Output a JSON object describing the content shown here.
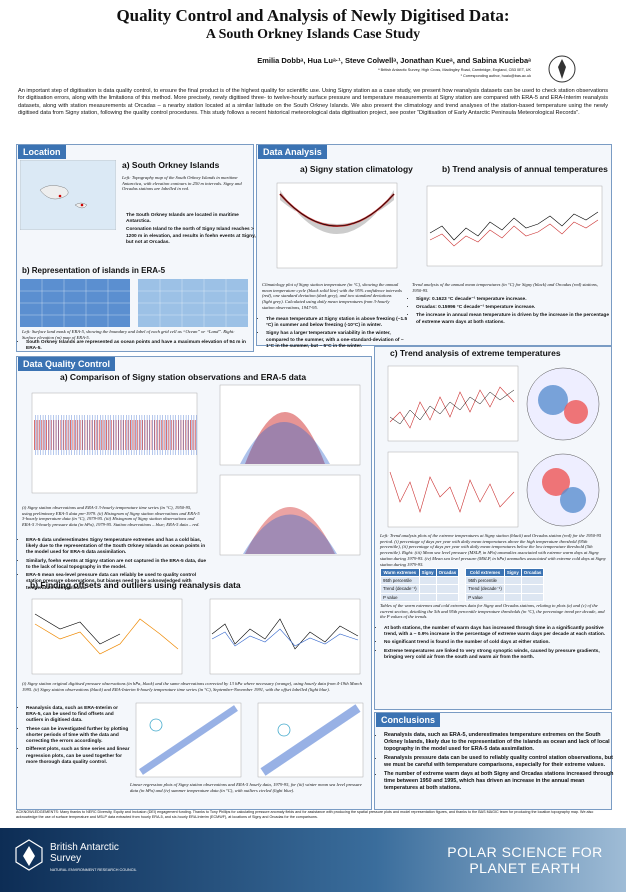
{
  "header": {
    "title": "Quality Control and Analysis of Newly Digitised Data:",
    "subtitle": "A South Orkney Islands Case Study",
    "authors": "Emilia Dobbᵃ, Hua Luᵃ·¹, Steve Colwellᵃ, Jonathan Kueᵃ, and Sabina Kuciebaᵃ",
    "affiliation": "ᵃ British Antarctic Survey, High Cross, Madingley Road, Cambridge, England, CB3 0ET, UK",
    "contact": "¹ Corresponding author, hualu@bas.ac.uk"
  },
  "abstract": "An important step of digitisation is data quality control, to ensure the final product is of the highest quality for scientific use. Using Signy station as a case study, we present how reanalysis datasets can be used to check station observations for digitisation errors, along with the limitations of this method. More precisely, newly digitised three- to twelve-hourly surface pressure and temperature measurements at Signy station are compared with ERA-5 and ERA-Interim reanalysis datasets, along with station measurements at Orcadas – a nearby station located at a similar latitude on the South Orkney Islands. We also present the climatology and trend analyses of the station-based temperature using the newly digitised data from Signy station, following the quality control procedures. This study follows a recent historical meteorological data digitisation project, see poster “Digitisation of Early Antarctic Peninsula Meteorological Records”.",
  "location": {
    "heading": "Location",
    "a_title": "a) South Orkney Islands",
    "a_caption": "Left: Topography map of the South Orkney Islands in maritime Antarctica, with elevation contours in 250 m intervals. Signy and Orcadas stations are labelled in red.",
    "a_bullets": [
      "The South Orkney Islands are located in maritime Antarctica.",
      "Coronation Island to the north of Signy Island reaches > 1200 m in elevation, and results in foehn events at Signy, but not at Orcadas."
    ],
    "b_title": "b) Representation of islands in ERA-5",
    "b_caption": "Left: Surface land mask of ERA-5, showing the boundary and label of each grid cell as “Ocean” or “Land”. Right: Surface elevation (m) map of ERA-5.",
    "b_bullets": [
      "South Orkney Islands are represented as ocean points and have a maximum elevation of 94 m in ERA-5."
    ]
  },
  "analysis": {
    "heading": "Data Analysis",
    "a_title": "a) Signy station climatology",
    "a_caption": "Climatology plot of Signy station temperature (in °C), showing the annual mean temperature cycle (black solid line) with the 95% confidence intervals (red), one standard deviation (dark grey), and two standard deviations (light grey). Calculated using daily mean temperatures from 3-hourly station observations, 1947-95.",
    "a_bullets": [
      "The mean temperature at Signy station is above freezing (~1.5 °C) in summer and below freezing (-10°C) in winter.",
      "Signy has a larger temperature variability in the winter, compared to the summer, with a one-standard-deviation of ~ 1°C in the summer, but ~ 5°C in the winter."
    ],
    "b_title": "b) Trend analysis of annual temperatures",
    "b_caption": "Trend analysis of the annual mean temperatures (in °C) for Signy (black) and Orcadas (red) stations, 1950-95.",
    "b_bullets": [
      "Signy: 0.1623 °C decade⁻¹ temperature increase.",
      "Orcadas: 0.15996 °C decade⁻¹ temperature increase.",
      "The increase in annual mean temperature is driven by the increase in the percentage of extreme warm days at both stations."
    ],
    "c_title": "c) Trend analysis of extreme temperatures",
    "c_caption": "Left: Trend analysis plots of the extreme temperatures at Signy station (black) and Orcadas station (red) for the 1950-95 period. (i) percentage of days per year with daily mean temperatures above the high temperature threshold (95th percentile), (ii) percentage of days per year with daily mean temperatures below the low temperature threshold (5th percentile). Right: (iii) Mean sea level pressure (MSLP, in hPa) anomalies associated with extreme warm days at Signy station during 1979-95. (iv) Mean sea level pressure (MSLP, in hPa) anomalies associated with extreme cold days at Signy station during 1979-95.",
    "table_warm": [
      "Warm extremes",
      "Signy",
      "Orcadas"
    ],
    "table_cold": [
      "Cold extremes",
      "Signy",
      "Orcadas"
    ],
    "table_rows": [
      "95th percentile",
      "Trend (decade⁻¹)",
      "P value"
    ],
    "table_caption": "Tables of the warm extremes and cold extremes data for Signy and Orcadas stations, relating to plots (a) and (c) of the current section, detailing the 5th and 95th percentile temperature thresholds (in °C), the percentage trend per decade, and the P values of the trends.",
    "c_bullets": [
      "At both stations, the number of warm days has increased through time in a significantly positive trend, with a ~ 0.9% increase in the percentage of extreme warm days per decade at each station.",
      "No significant trend is found in the number of cold days at either station.",
      "Extreme temperatures are linked to very strong synoptic winds, caused by pressure gradients, bringing very cold air from the south and warm air from the north."
    ]
  },
  "quality": {
    "heading": "Data Quality Control",
    "a_title": "a)  Comparison of Signy station observations and ERA-5 data",
    "a_caption": "(i) Signy station observations and ERA-5 3-hourly temperature time series (in °C), 1950-95, using preliminary ERA-5 data pre-1979. (ii) Histogram of Signy station observations and ERA-5 3-hourly temperature data (in °C), 1979-95. (iii) Histogram of Signy station observations and ERA-5 3-hourly pressure data (in hPa), 1979-95. Station observations – blue; ERA-5 data – red.",
    "a_bullets": [
      "ERA-5 data underestimates Signy temperature extremes and has a cold bias, likely due to the representation of the South Orkney Islands as ocean points in the model used for ERA-5 data assimilation.",
      "Similarly, foehn events at Signy station are not captured in the ERA-5 data, due to the lack of local topography in the model.",
      "ERA-5 mean sea-level pressure data can reliably be used to quality control station pressure observations, but biases need to be acknowledged with temperature comparisons."
    ],
    "b_title": "b)  Finding offsets and outliers using reanalysis data",
    "b_caption": "(i) Signy station original digitised pressure observations (in hPa, black) and the same observations corrected by 13 hPa where necessary (orange), using hourly data from 4-19th March 1995. (ii) Signy station observations (black) and ERA-Interim 6-hourly temperature time series (in °C), September-November 1991, with the offset labelled (light blue).",
    "b_bullets": [
      "Reanalysis data, such as ERA-Interim or ERA-5, can be used to find offsets and outliers in digitised data.",
      "These can be investigated further by plotting shorter periods of time with the data and correcting the errors accordingly.",
      "Different plots, such as time series and linear regression plots, can be used together for more thorough data quality control."
    ],
    "b_caption2": "Linear regression plots of Signy station observations and ERA-5 hourly data, 1979-95, for (iii) winter mean sea level pressure data (in hPa) and (iv) summer temperature data (in °C), with outliers circled (light blue)."
  },
  "conclusions": {
    "heading": "Conclusions",
    "bullets": [
      "Reanalysis data, such as ERA-5, underestimates temperature extremes on the South Orkney Islands, likely due to the representation of the islands as ocean and lack of local topography in the model used for ERA-5 data assimilation.",
      "Reanalysis pressure data can be used to reliably quality control station observations, but we must be careful with temperature comparisons, especially for their extreme values.",
      "The number of extreme warm days at both Signy and Orcadas stations increased through time between 1950 and 1995, which has driven an increase in the annual mean temperatures at both stations."
    ]
  },
  "acknowledgements": "ACKNOWLEDGEMENTS: Many thanks to NERC Diversity, Equity and Inclusion (DEI) engagement funding. Thanks to Tony Phillips for calculating pressure anomaly fields and for assistance with producing the spatial pressure plots and model representation figures, and thanks to the BAS MAGIC team for producing the location topography map. We also acknowledge the use of surface temperature and MSLP data extracted from hourly ERA-5, and six-hourly ERA-Interim (ECMWF), at locations of Signy and Orcadas for the comparisons.",
  "footer": {
    "org": "British Antarctic Survey",
    "org_sub": "NATURAL ENVIRONMENT RESEARCH COUNCIL",
    "slogan": "POLAR SCIENCE FOR PLANET EARTH"
  }
}
